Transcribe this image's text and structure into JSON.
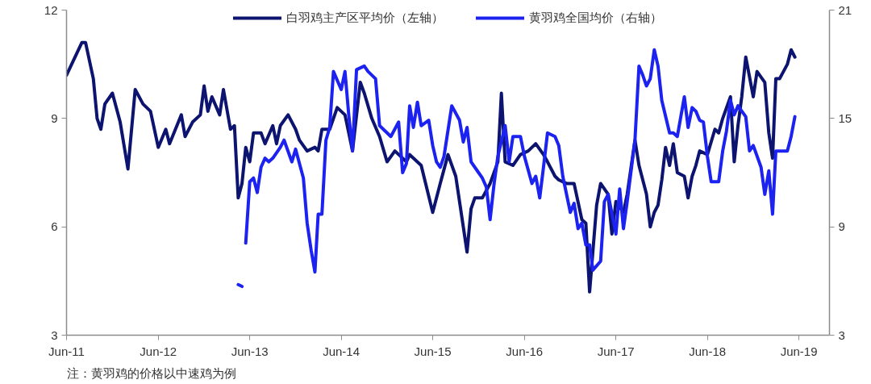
{
  "chart_data": {
    "type": "line",
    "annotations": [
      "注：黄羽鸡的价格以中速鸡为例"
    ],
    "xlim": [
      "2011-06-01",
      "2019-10-01"
    ],
    "xticks": [
      {
        "value": "2011-06-01",
        "label": "Jun-11"
      },
      {
        "value": "2012-06-01",
        "label": "Jun-12"
      },
      {
        "value": "2013-06-01",
        "label": "Jun-13"
      },
      {
        "value": "2014-06-01",
        "label": "Jun-14"
      },
      {
        "value": "2015-06-01",
        "label": "Jun-15"
      },
      {
        "value": "2016-06-01",
        "label": "Jun-16"
      },
      {
        "value": "2017-06-01",
        "label": "Jun-17"
      },
      {
        "value": "2018-06-01",
        "label": "Jun-18"
      },
      {
        "value": "2019-06-01",
        "label": "Jun-19"
      }
    ],
    "ylim": [
      3,
      12
    ],
    "yticks": [
      3,
      6,
      9,
      12
    ],
    "y2lim": [
      3,
      21
    ],
    "y2ticks": [
      3,
      9,
      15,
      21
    ],
    "legend": "top",
    "line_style": "solid",
    "series": [
      {
        "name": "白羽鸡主产区平均价（左轴）",
        "color": "#0c1470",
        "x": [
          "2011-06-01",
          "2011-08-01",
          "2011-08-16",
          "2011-09-16",
          "2011-10-01",
          "2011-10-16",
          "2011-11-01",
          "2011-12-01",
          "2012-01-01",
          "2012-02-01",
          "2012-03-01",
          "2012-04-01",
          "2012-05-01",
          "2012-06-01",
          "2012-07-01",
          "2012-07-16",
          "2012-09-01",
          "2012-09-16",
          "2012-10-16",
          "2012-11-16",
          "2012-12-01",
          "2012-12-16",
          "2013-01-01",
          "2013-02-01",
          "2013-02-16",
          "2013-03-16",
          "2013-04-01",
          "2013-04-16",
          "2013-05-01",
          "2013-05-16",
          "2013-06-01",
          "2013-06-16",
          "2013-07-16",
          "2013-08-01",
          "2013-09-01",
          "2013-09-16",
          "2013-10-01",
          "2013-11-01",
          "2013-12-01",
          "2013-12-16",
          "2014-01-16",
          "2014-02-16",
          "2014-03-01",
          "2014-03-16",
          "2014-04-16",
          "2014-05-16",
          "2014-06-16",
          "2014-07-16",
          "2014-08-16",
          "2014-09-01",
          "2014-10-01",
          "2014-11-01",
          "2014-12-01",
          "2015-01-01",
          "2015-02-16",
          "2015-03-01",
          "2015-04-16",
          "2015-06-01",
          "2015-07-01",
          "2015-08-01",
          "2015-09-01",
          "2015-10-01",
          "2015-10-16",
          "2015-11-01",
          "2015-11-16",
          "2015-12-16",
          "2016-01-16",
          "2016-02-16",
          "2016-03-01",
          "2016-03-16",
          "2016-04-16",
          "2016-05-16",
          "2016-06-16",
          "2016-07-16",
          "2016-08-16",
          "2016-09-01",
          "2016-10-01",
          "2016-10-16",
          "2016-11-16",
          "2016-12-16",
          "2017-01-16",
          "2017-02-01",
          "2017-02-16",
          "2017-03-16",
          "2017-04-01",
          "2017-05-01",
          "2017-05-16",
          "2017-06-01",
          "2017-07-01",
          "2017-07-16",
          "2017-08-16",
          "2017-09-01",
          "2017-10-01",
          "2017-10-16",
          "2017-11-01",
          "2017-11-16",
          "2017-12-01",
          "2017-12-16",
          "2018-01-01",
          "2018-01-16",
          "2018-02-01",
          "2018-03-01",
          "2018-03-16",
          "2018-04-01",
          "2018-04-16",
          "2018-05-01",
          "2018-06-01",
          "2018-07-01",
          "2018-07-16",
          "2018-08-01",
          "2018-09-01",
          "2018-09-16",
          "2018-10-01",
          "2018-10-16",
          "2018-11-01",
          "2018-12-01",
          "2018-12-16",
          "2019-01-16",
          "2019-02-01",
          "2019-02-16",
          "2019-03-01",
          "2019-03-16",
          "2019-04-16",
          "2019-05-01",
          "2019-05-16"
        ],
        "values": [
          10.2,
          11.1,
          11.1,
          10.1,
          9.0,
          8.7,
          9.4,
          9.7,
          8.9,
          7.6,
          9.8,
          9.4,
          9.2,
          8.2,
          8.7,
          8.3,
          9.1,
          8.5,
          8.9,
          9.1,
          9.9,
          9.2,
          9.6,
          9.1,
          9.8,
          8.7,
          8.8,
          6.8,
          7.2,
          8.2,
          7.8,
          8.6,
          8.6,
          8.3,
          8.8,
          8.3,
          8.8,
          9.1,
          8.7,
          8.4,
          8.1,
          8.2,
          8.1,
          8.7,
          8.7,
          9.3,
          9.1,
          8.1,
          10.0,
          9.7,
          9.0,
          8.5,
          7.8,
          8.1,
          7.8,
          8.0,
          7.7,
          6.4,
          7.2,
          8.0,
          7.4,
          6.0,
          5.3,
          6.5,
          6.8,
          6.8,
          7.2,
          7.8,
          9.7,
          7.8,
          7.7,
          8.0,
          8.1,
          8.3,
          8.0,
          7.8,
          7.4,
          7.3,
          7.2,
          7.2,
          6.2,
          6.1,
          4.2,
          6.6,
          7.2,
          6.9,
          5.8,
          6.7,
          6.4,
          6.9,
          8.4,
          7.7,
          6.9,
          6.0,
          6.4,
          6.6,
          7.3,
          8.2,
          7.7,
          8.3,
          7.5,
          7.4,
          6.8,
          7.4,
          7.7,
          8.1,
          8.0,
          8.7,
          8.6,
          9.0,
          9.6,
          7.8,
          8.8,
          9.6,
          10.7,
          9.6,
          10.3,
          10.0,
          8.6,
          7.9,
          10.1,
          10.1,
          10.5,
          10.9,
          10.7
        ]
      },
      {
        "name": "黄羽鸡全国均价（右轴）",
        "color": "#1c22f0",
        "axis": "y2",
        "x": [
          "2013-04-16",
          "2013-05-01",
          "2013-05-08",
          "2013-05-16",
          "2013-06-01",
          "2013-06-16",
          "2013-07-01",
          "2013-07-16",
          "2013-08-01",
          "2013-08-16",
          "2013-09-01",
          "2013-10-01",
          "2013-10-16",
          "2013-11-16",
          "2013-12-01",
          "2014-01-01",
          "2014-01-16",
          "2014-02-01",
          "2014-02-16",
          "2014-03-01",
          "2014-03-16",
          "2014-04-01",
          "2014-04-16",
          "2014-05-01",
          "2014-06-01",
          "2014-06-16",
          "2014-07-01",
          "2014-07-16",
          "2014-08-01",
          "2014-09-01",
          "2014-09-16",
          "2014-10-16",
          "2014-11-01",
          "2014-11-16",
          "2014-12-16",
          "2015-01-16",
          "2015-02-01",
          "2015-02-16",
          "2015-03-01",
          "2015-03-16",
          "2015-04-01",
          "2015-04-16",
          "2015-05-16",
          "2015-06-01",
          "2015-06-16",
          "2015-07-01",
          "2015-07-16",
          "2015-08-16",
          "2015-09-16",
          "2015-10-01",
          "2015-10-16",
          "2015-11-01",
          "2015-12-01",
          "2015-12-16",
          "2016-01-01",
          "2016-01-16",
          "2016-02-01",
          "2016-02-16",
          "2016-03-16",
          "2016-04-01",
          "2016-04-16",
          "2016-05-16",
          "2016-06-01",
          "2016-07-01",
          "2016-07-16",
          "2016-08-01",
          "2016-08-16",
          "2016-09-01",
          "2016-10-01",
          "2016-10-16",
          "2016-11-01",
          "2016-12-01",
          "2016-12-16",
          "2017-01-01",
          "2017-01-16",
          "2017-02-01",
          "2017-02-16",
          "2017-03-01",
          "2017-04-01",
          "2017-04-16",
          "2017-05-01",
          "2017-06-01",
          "2017-06-16",
          "2017-07-01",
          "2017-07-16",
          "2017-08-16",
          "2017-09-01",
          "2017-09-16",
          "2017-10-01",
          "2017-10-16",
          "2017-11-01",
          "2017-11-16",
          "2017-12-01",
          "2018-01-01",
          "2018-01-16",
          "2018-02-01",
          "2018-03-01",
          "2018-03-16",
          "2018-04-01",
          "2018-04-16",
          "2018-05-01",
          "2018-05-16",
          "2018-06-01",
          "2018-06-16",
          "2018-07-16",
          "2018-08-01",
          "2018-08-16",
          "2018-09-01",
          "2018-09-16",
          "2018-10-01",
          "2018-11-01",
          "2018-11-16",
          "2018-12-01",
          "2019-01-01",
          "2019-01-16",
          "2019-02-01",
          "2019-02-16",
          "2019-03-01",
          "2019-04-01",
          "2019-04-16",
          "2019-05-01",
          "2019-05-16"
        ],
        "values": [
          5.8,
          5.7,
          null,
          8.1,
          11.5,
          11.7,
          10.9,
          12.3,
          12.8,
          12.6,
          12.8,
          13.4,
          13.8,
          12.6,
          13.3,
          11.7,
          9.2,
          7.7,
          6.5,
          9.7,
          9.7,
          13.8,
          14.5,
          17.6,
          16.6,
          17.6,
          15.2,
          13.2,
          17.7,
          17.9,
          17.6,
          17.2,
          14.6,
          14.4,
          14.0,
          14.8,
          12.0,
          12.5,
          15.7,
          14.5,
          15.9,
          14.6,
          14.9,
          13.5,
          12.6,
          12.3,
          12.9,
          15.7,
          14.9,
          13.7,
          14.5,
          12.6,
          12.0,
          11.7,
          11.2,
          9.4,
          11.4,
          12.9,
          14.6,
          12.6,
          14.0,
          14.0,
          12.9,
          11.4,
          11.8,
          10.6,
          12.3,
          14.2,
          14.0,
          13.5,
          11.8,
          9.8,
          10.3,
          8.9,
          9.2,
          8.0,
          8.0,
          6.6,
          7.1,
          10.4,
          10.8,
          8.6,
          11.1,
          8.9,
          10.4,
          13.8,
          17.9,
          17.4,
          16.8,
          17.2,
          18.8,
          17.9,
          16.0,
          14.2,
          14.2,
          14.0,
          16.2,
          14.5,
          15.6,
          15.4,
          14.9,
          14.8,
          12.9,
          11.5,
          11.5,
          13.2,
          14.3,
          16.0,
          15.2,
          15.7,
          15.1,
          13.2,
          13.5,
          12.3,
          10.8,
          12.1,
          9.7,
          13.2,
          13.2,
          13.2,
          14.0,
          15.1
        ]
      }
    ]
  }
}
